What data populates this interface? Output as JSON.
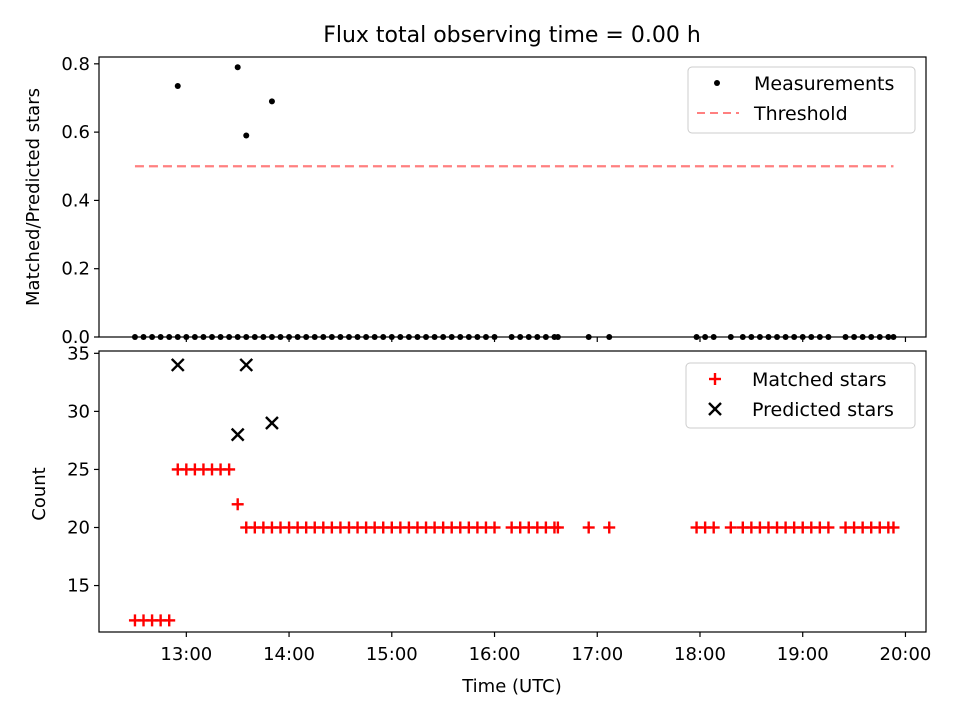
{
  "figure": {
    "title": "Flux total observing time = 0.00 h"
  },
  "chart_data": [
    {
      "type": "scatter",
      "panel": "top",
      "ylabel": "Matched/Predicted stars",
      "xlabel": "",
      "xlim": [
        "12:09",
        "20:12"
      ],
      "ylim": [
        0,
        0.82
      ],
      "yticks": [
        0.0,
        0.2,
        0.4,
        0.6,
        0.8
      ],
      "ytick_labels": [
        "0.0",
        "0.2",
        "0.4",
        "0.6",
        "0.8"
      ],
      "xticks": [
        "13:00",
        "14:00",
        "15:00",
        "16:00",
        "17:00",
        "18:00",
        "19:00",
        "20:00"
      ],
      "legend_position": "top-right",
      "series": [
        {
          "name": "Measurements",
          "marker": "dot",
          "color": "#000000",
          "x": [
            "12:30",
            "12:35",
            "12:40",
            "12:45",
            "12:50",
            "12:55",
            "13:00",
            "13:05",
            "13:10",
            "13:15",
            "13:20",
            "13:25",
            "13:30",
            "13:35",
            "13:40",
            "13:45",
            "13:50",
            "13:55",
            "14:00",
            "14:05",
            "14:10",
            "14:15",
            "14:20",
            "14:25",
            "14:30",
            "14:35",
            "14:40",
            "14:45",
            "14:50",
            "14:55",
            "15:00",
            "15:05",
            "15:10",
            "15:15",
            "15:20",
            "15:25",
            "15:30",
            "15:35",
            "15:40",
            "15:45",
            "15:50",
            "15:55",
            "16:00",
            "16:10",
            "16:15",
            "16:20",
            "16:25",
            "16:30",
            "16:35",
            "16:37",
            "16:55",
            "17:07",
            "17:58",
            "18:03",
            "18:08",
            "18:18",
            "18:25",
            "18:30",
            "18:35",
            "18:40",
            "18:45",
            "18:50",
            "18:55",
            "19:00",
            "19:05",
            "19:10",
            "19:15",
            "19:25",
            "19:30",
            "19:35",
            "19:40",
            "19:45",
            "19:50",
            "19:53",
            "12:55",
            "13:30",
            "13:35",
            "13:50"
          ],
          "y": [
            0,
            0,
            0,
            0,
            0,
            0,
            0,
            0,
            0,
            0,
            0,
            0,
            0,
            0,
            0,
            0,
            0,
            0,
            0,
            0,
            0,
            0,
            0,
            0,
            0,
            0,
            0,
            0,
            0,
            0,
            0,
            0,
            0,
            0,
            0,
            0,
            0,
            0,
            0,
            0,
            0,
            0,
            0,
            0,
            0,
            0,
            0,
            0,
            0,
            0,
            0,
            0,
            0,
            0,
            0,
            0,
            0,
            0,
            0,
            0,
            0,
            0,
            0,
            0,
            0,
            0,
            0,
            0,
            0,
            0,
            0,
            0,
            0,
            0,
            0.735,
            0.79,
            0.59,
            0.69
          ]
        },
        {
          "name": "Threshold",
          "line": "dashed",
          "color": "#ff8080",
          "x": [
            "12:30",
            "19:53"
          ],
          "y": [
            0.5,
            0.5
          ]
        }
      ]
    },
    {
      "type": "scatter",
      "panel": "bottom",
      "xlabel": "Time (UTC)",
      "ylabel": "Count",
      "xlim": [
        "12:09",
        "20:12"
      ],
      "ylim": [
        11,
        35.2
      ],
      "yticks": [
        15,
        20,
        25,
        30,
        35
      ],
      "ytick_labels": [
        "15",
        "20",
        "25",
        "30",
        "35"
      ],
      "xticks": [
        "13:00",
        "14:00",
        "15:00",
        "16:00",
        "17:00",
        "18:00",
        "19:00",
        "20:00"
      ],
      "legend_position": "top-right",
      "series": [
        {
          "name": "Matched stars",
          "marker": "plus",
          "color": "#ff0000",
          "x": [
            "12:30",
            "12:35",
            "12:40",
            "12:45",
            "12:50",
            "12:55",
            "13:00",
            "13:05",
            "13:10",
            "13:15",
            "13:20",
            "13:25",
            "13:30",
            "13:35",
            "13:40",
            "13:45",
            "13:50",
            "13:55",
            "14:00",
            "14:05",
            "14:10",
            "14:15",
            "14:20",
            "14:25",
            "14:30",
            "14:35",
            "14:40",
            "14:45",
            "14:50",
            "14:55",
            "15:00",
            "15:05",
            "15:10",
            "15:15",
            "15:20",
            "15:25",
            "15:30",
            "15:35",
            "15:40",
            "15:45",
            "15:50",
            "15:55",
            "16:00",
            "16:10",
            "16:15",
            "16:20",
            "16:25",
            "16:30",
            "16:35",
            "16:37",
            "16:55",
            "17:07",
            "17:58",
            "18:03",
            "18:08",
            "18:18",
            "18:25",
            "18:30",
            "18:35",
            "18:40",
            "18:45",
            "18:50",
            "18:55",
            "19:00",
            "19:05",
            "19:10",
            "19:15",
            "19:25",
            "19:30",
            "19:35",
            "19:40",
            "19:45",
            "19:50",
            "19:53"
          ],
          "y": [
            12,
            12,
            12,
            12,
            12,
            25,
            25,
            25,
            25,
            25,
            25,
            25,
            22,
            20,
            20,
            20,
            20,
            20,
            20,
            20,
            20,
            20,
            20,
            20,
            20,
            20,
            20,
            20,
            20,
            20,
            20,
            20,
            20,
            20,
            20,
            20,
            20,
            20,
            20,
            20,
            20,
            20,
            20,
            20,
            20,
            20,
            20,
            20,
            20,
            20,
            20,
            20,
            20,
            20,
            20,
            20,
            20,
            20,
            20,
            20,
            20,
            20,
            20,
            20,
            20,
            20,
            20,
            20,
            20,
            20,
            20,
            20,
            20,
            20
          ]
        },
        {
          "name": "Predicted stars",
          "marker": "x",
          "color": "#000000",
          "x": [
            "12:55",
            "13:30",
            "13:35",
            "13:50"
          ],
          "y": [
            34,
            28,
            34,
            29
          ]
        }
      ]
    }
  ]
}
